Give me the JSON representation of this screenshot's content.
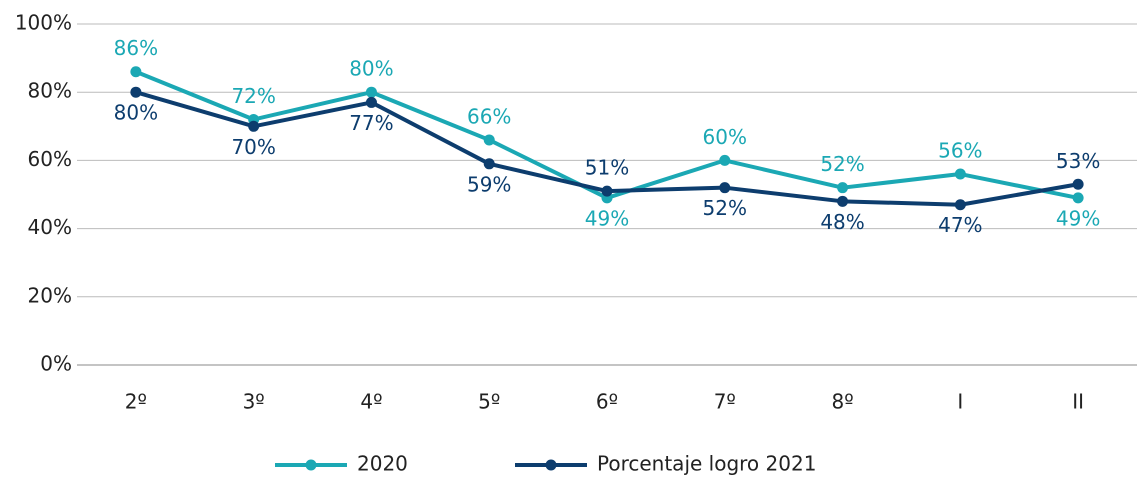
{
  "chart_data": {
    "type": "line",
    "categories": [
      "2º",
      "3º",
      "4º",
      "5º",
      "6º",
      "7º",
      "8º",
      "I",
      "II"
    ],
    "series": [
      {
        "name": "2020",
        "color": "#1ba8b4",
        "values": [
          86,
          72,
          80,
          66,
          49,
          60,
          52,
          56,
          49
        ],
        "value_labels": [
          "86%",
          "72%",
          "80%",
          "66%",
          "49%",
          "60%",
          "52%",
          "56%",
          "49%"
        ]
      },
      {
        "name": "Porcentaje logro 2021",
        "color": "#0d3d6e",
        "values": [
          80,
          70,
          77,
          59,
          51,
          52,
          48,
          47,
          53
        ],
        "value_labels": [
          "80%",
          "70%",
          "77%",
          "59%",
          "51%",
          "52%",
          "48%",
          "47%",
          "53%"
        ]
      }
    ],
    "ylim": [
      0,
      100
    ],
    "yticks": [
      {
        "value": 0,
        "label": "0%"
      },
      {
        "value": 20,
        "label": "20%"
      },
      {
        "value": 40,
        "label": "40%"
      },
      {
        "value": 60,
        "label": "60%"
      },
      {
        "value": 80,
        "label": "80%"
      },
      {
        "value": 100,
        "label": "100%"
      }
    ],
    "grid": true,
    "legend": "bottom"
  }
}
